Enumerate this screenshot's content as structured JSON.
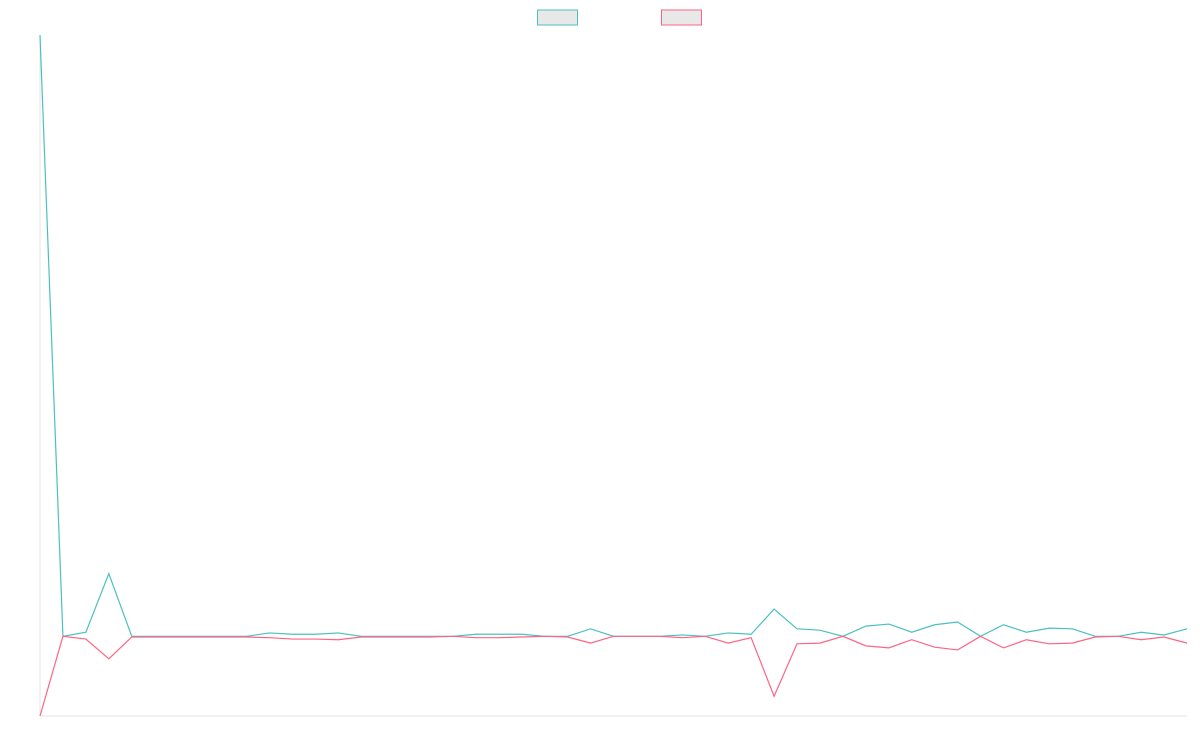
{
  "chart_data": {
    "type": "line",
    "categories": [
      null,
      null,
      null,
      null,
      null,
      null,
      null,
      null,
      null,
      null,
      null,
      null,
      null,
      null,
      null,
      null,
      null,
      null,
      null,
      null,
      null,
      null,
      null,
      null,
      null,
      null,
      null,
      null,
      null,
      null,
      null,
      null,
      null,
      null,
      null,
      null,
      null,
      null,
      null,
      null,
      null,
      null,
      null,
      null,
      null,
      null,
      null,
      null,
      null,
      null,
      null
    ],
    "ylim": [
      0,
      100
    ],
    "legend": "top",
    "series": [
      {
        "color": "#4bc0c0",
        "values": [
          100,
          11.7,
          12.3,
          20.9,
          11.7,
          11.7,
          11.7,
          11.7,
          11.7,
          11.7,
          12.2,
          12.0,
          12.0,
          12.2,
          11.7,
          11.7,
          11.7,
          11.7,
          11.7,
          12.0,
          12.0,
          12.0,
          11.7,
          11.7,
          12.8,
          11.7,
          11.7,
          11.7,
          11.9,
          11.7,
          12.2,
          12.0,
          15.7,
          12.8,
          12.6,
          11.7,
          13.2,
          13.5,
          12.3,
          13.4,
          13.8,
          11.7,
          13.4,
          12.3,
          12.9,
          12.8,
          11.7,
          11.7,
          12.3,
          11.9,
          12.8
        ]
      },
      {
        "color": "#ff6384",
        "values": [
          0,
          11.7,
          11.3,
          8.4,
          11.6,
          11.6,
          11.6,
          11.6,
          11.6,
          11.6,
          11.5,
          11.3,
          11.3,
          11.2,
          11.6,
          11.6,
          11.6,
          11.6,
          11.7,
          11.5,
          11.5,
          11.6,
          11.7,
          11.6,
          10.7,
          11.7,
          11.7,
          11.7,
          11.5,
          11.7,
          10.7,
          11.5,
          2.9,
          10.6,
          10.7,
          11.7,
          10.3,
          10.0,
          11.2,
          10.1,
          9.7,
          11.7,
          10.0,
          11.2,
          10.6,
          10.7,
          11.6,
          11.7,
          11.2,
          11.6,
          10.7
        ]
      }
    ]
  }
}
